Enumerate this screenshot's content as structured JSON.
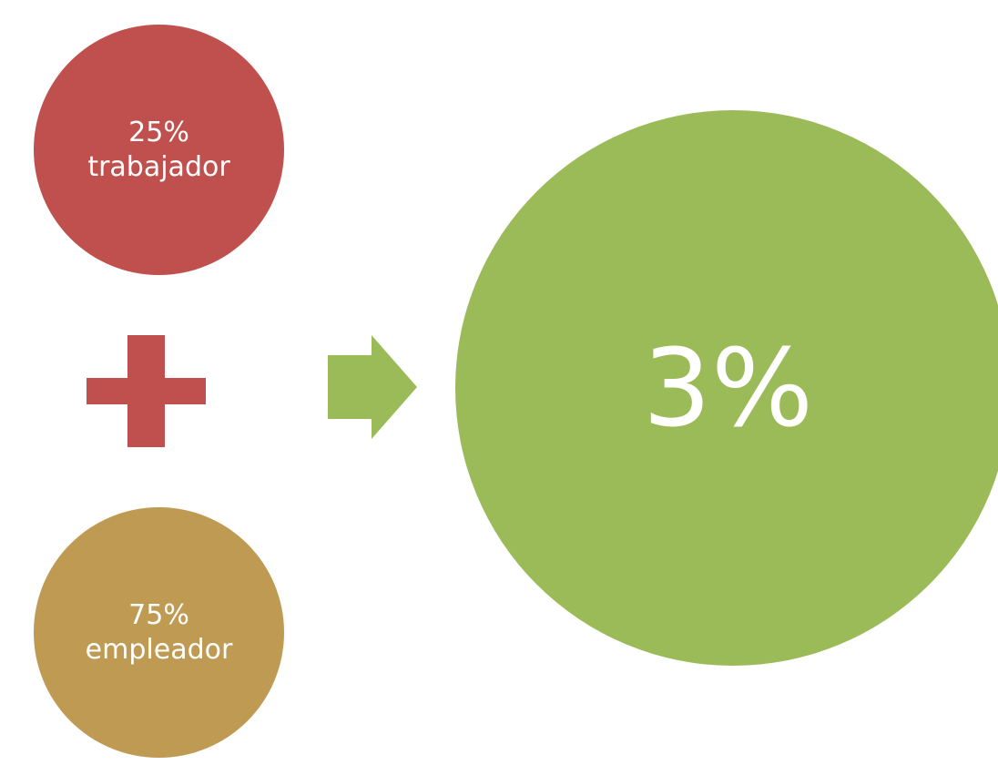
{
  "colors": {
    "worker": "#C0504D",
    "employer": "#BF9A52",
    "total": "#9BBB59",
    "plus": "#C0504D",
    "arrow": "#9BBB59"
  },
  "worker": {
    "percent": "25%",
    "label": "trabajador"
  },
  "employer": {
    "percent": "75%",
    "label": "empleador"
  },
  "total": {
    "value": "3%"
  },
  "icons": {
    "plus": "plus-icon",
    "arrow": "arrow-right-icon"
  }
}
